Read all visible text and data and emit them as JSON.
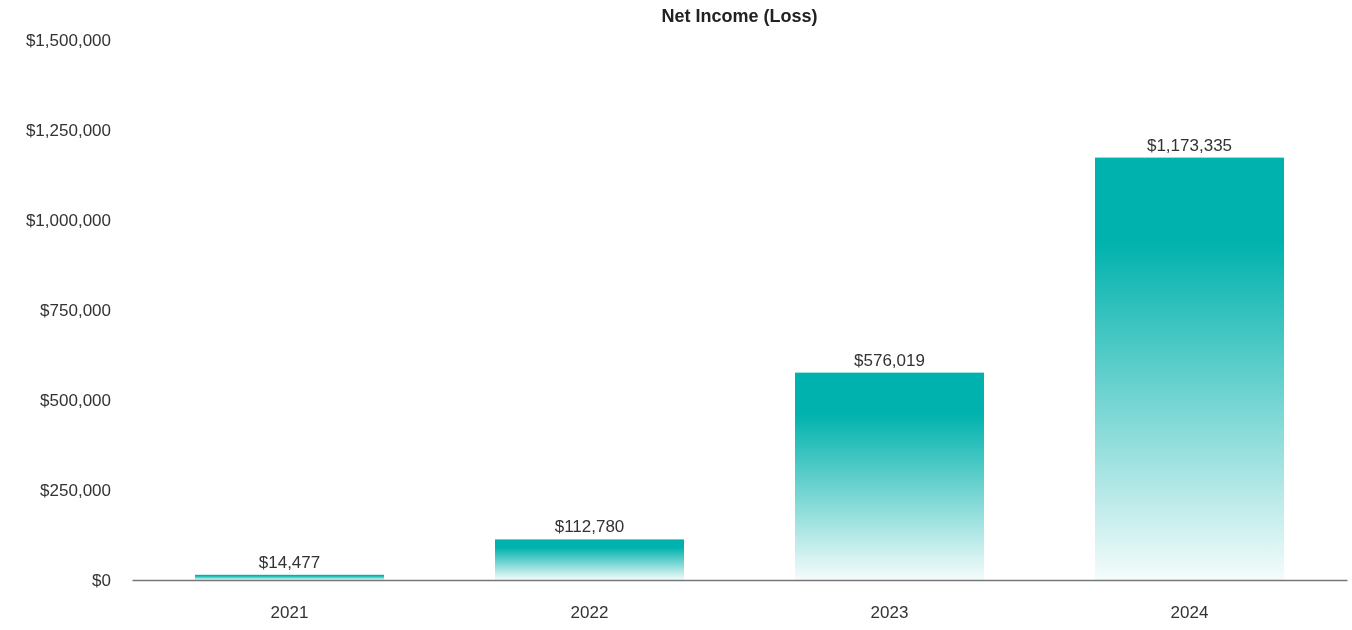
{
  "chart_data": {
    "type": "bar",
    "title": "Net Income (Loss)",
    "categories": [
      "2021",
      "2022",
      "2023",
      "2024"
    ],
    "values": [
      14477,
      112780,
      576019,
      1173335
    ],
    "color": "#00b2ad",
    "ylim": [
      0,
      1500000
    ],
    "yticks": [
      {
        "value": 0,
        "label": "$0"
      },
      {
        "value": 250000,
        "label": "$250,000"
      },
      {
        "value": 500000,
        "label": "$500,000"
      },
      {
        "value": 750000,
        "label": "$750,000"
      },
      {
        "value": 1000000,
        "label": "$1,000,000"
      },
      {
        "value": 1250000,
        "label": "$1,250,000"
      },
      {
        "value": 1500000,
        "label": "$1,500,000"
      }
    ],
    "value_labels": [
      "$14,477",
      "$112,780",
      "$576,019",
      "$1,173,335"
    ],
    "grid": false
  }
}
